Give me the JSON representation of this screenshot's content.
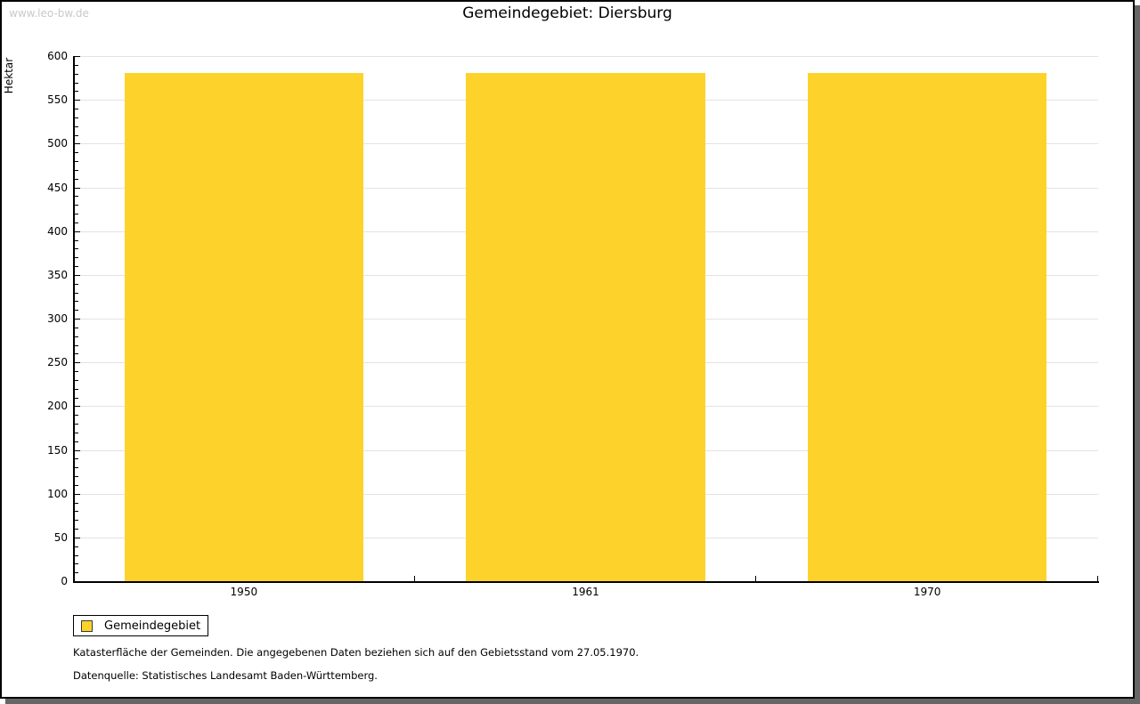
{
  "watermark": "www.leo-bw.de",
  "title": "Gemeindegebiet: Diersburg",
  "chart_data": {
    "type": "bar",
    "title": "Gemeindegebiet: Diersburg",
    "categories": [
      "1950",
      "1961",
      "1970"
    ],
    "series": [
      {
        "name": "Gemeindegebiet",
        "values": [
          581,
          581,
          581
        ]
      }
    ],
    "xlabel": "",
    "ylabel": "Hektar",
    "ylim": [
      0,
      600
    ],
    "ytick_major": 50,
    "ytick_minor": 10,
    "grid": "horizontal-major",
    "legend_position": "bottom-left",
    "bar_fraction_of_slot": 0.7
  },
  "legend": {
    "label": "Gemeindegebiet"
  },
  "footnotes": [
    "Katasterfläche der Gemeinden. Die angegebenen Daten beziehen sich auf den Gebietsstand vom 27.05.1970.",
    "Datenquelle: Statistisches Landesamt Baden-Württemberg."
  ],
  "colors": {
    "bar": "#fdd32b",
    "grid": "#e3e3e3",
    "axis": "#000000",
    "frame_shadow": "#666666",
    "watermark": "#c9c9c9",
    "text": "#000000"
  }
}
